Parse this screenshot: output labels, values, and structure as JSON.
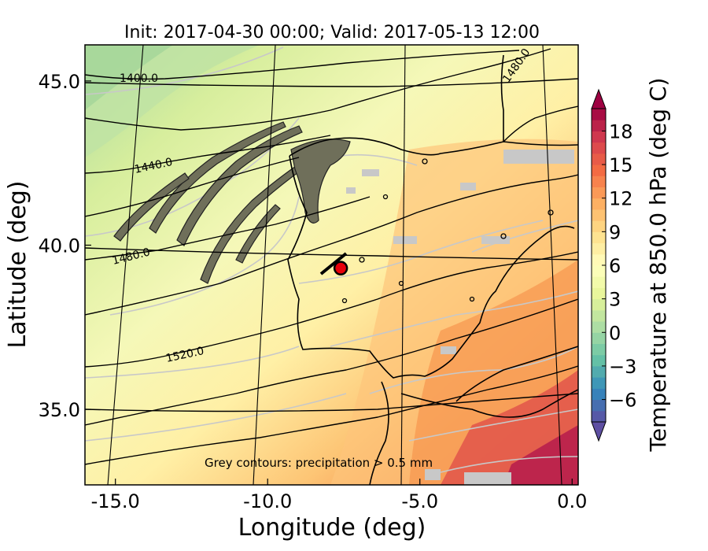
{
  "title": "Init: 2017-04-30 00:00; Valid: 2017-05-13 12:00",
  "xaxis": {
    "label": "Longitude (deg)",
    "range": [
      -16.0,
      0.2
    ],
    "ticks": [
      -15.0,
      -10.0,
      -5.0,
      0.0
    ],
    "tick_labels": [
      "-15.0",
      "-10.0",
      "-5.0",
      "0.0"
    ]
  },
  "yaxis": {
    "label": "Latitude (deg)",
    "range": [
      32.7,
      46.1
    ],
    "ticks": [
      35.0,
      40.0,
      45.0
    ],
    "tick_labels": [
      "35.0",
      "40.0",
      "45.0"
    ]
  },
  "colorbar": {
    "label": "Temperature at 850.0 hPa (deg C)",
    "range": [
      -8,
      20
    ],
    "ticks": [
      -6,
      -3,
      0,
      3,
      6,
      9,
      12,
      15,
      18
    ],
    "tick_labels": [
      "−6",
      "−3",
      "0",
      "3",
      "6",
      "9",
      "12",
      "15",
      "18"
    ],
    "colormap": "Spectral_r",
    "extend": "both"
  },
  "contour_labels": [
    "1400.0",
    "1440.0",
    "1480.0",
    "1520.0",
    "1480.0"
  ],
  "annotation": "Grey contours: precipitation > 0.5 mm",
  "marker": {
    "lon": -7.6,
    "lat": 39.3,
    "color": "#e8000b"
  },
  "colors": {
    "coast": "#000000",
    "gridline": "#000000",
    "precip_contour": "#c8c8c8",
    "terrain": "#6f6f5a"
  }
}
